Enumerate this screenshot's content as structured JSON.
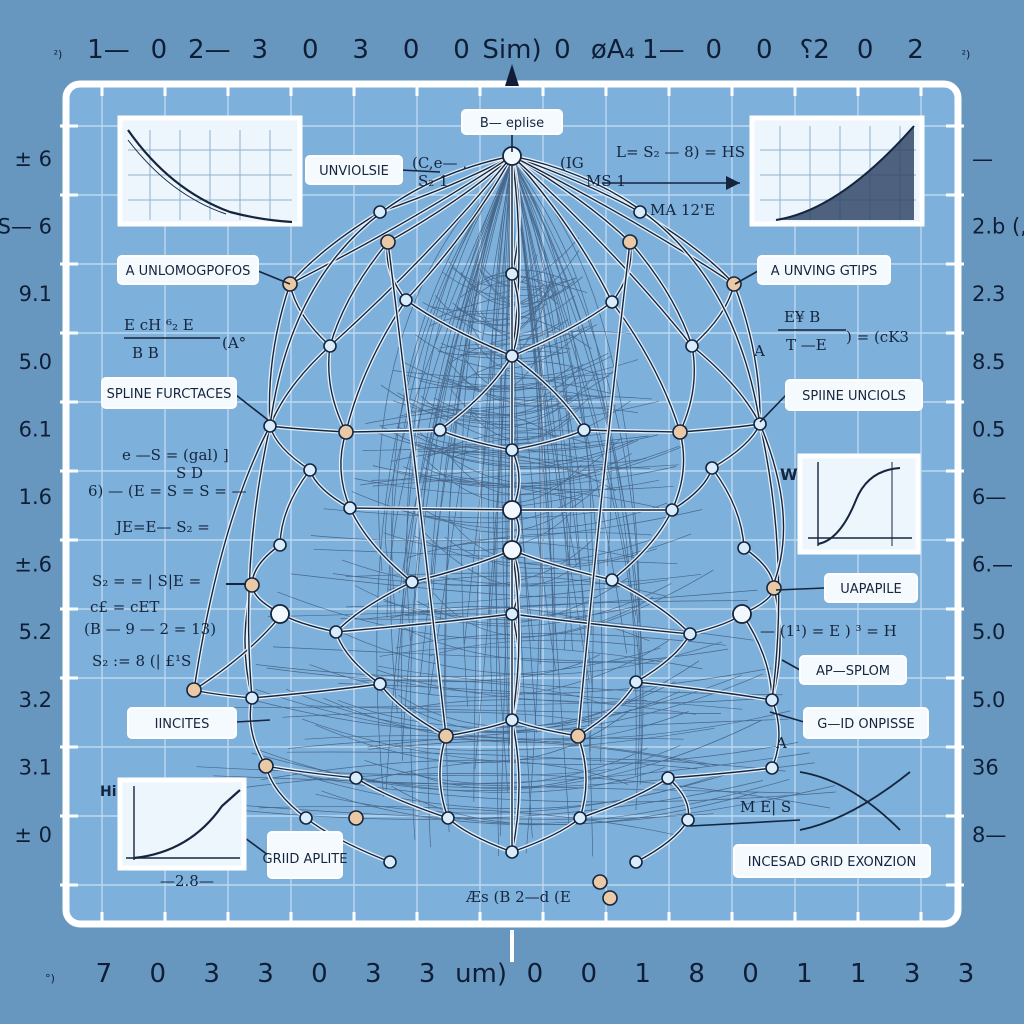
{
  "axis_top": {
    "labels": [
      "²)",
      "1—",
      "0",
      "2—",
      "3",
      "0",
      "3",
      "0",
      "0",
      "Sim)",
      "0",
      "øA₄",
      "1—",
      "0",
      "0",
      "⸮2",
      "0",
      "2",
      "²)"
    ]
  },
  "axis_bottom": {
    "labels": [
      "°)",
      "7",
      "0",
      "3",
      "3",
      "0",
      "3",
      "3",
      "um)",
      "0",
      "0",
      "1",
      "8",
      "0",
      "1",
      "1",
      "3",
      "3"
    ]
  },
  "axis_left": {
    "labels": [
      "± 6",
      "S— 6",
      "9.1",
      "5.0",
      "6.1",
      "1.6",
      "±.6",
      "5.2",
      "3.2",
      "3.1",
      "± 0"
    ]
  },
  "axis_right": {
    "labels": [
      "—",
      "2.b (,1",
      "2.3",
      "8.5",
      "0.5",
      "6—",
      "6.—",
      "5.0",
      "5.0",
      "36",
      "8—"
    ]
  },
  "callouts": {
    "top": "B— eplise",
    "unviolsie": "UNVIOLSIE",
    "unlomogpofos": "A UNLOMOGPOFOS",
    "unving_gtips": "A UNVING GTIPS",
    "spline_left": "SPLINE FURCTACES",
    "spline_right": "SPIINE UNCIOLS",
    "uapapile": "UAPAPILE",
    "apsplom": "AP—SPLOM",
    "iincites": "IINCITES",
    "grid_onpisse": "G—ID ONPISSE",
    "grid_aplite": "GRIID APLITE",
    "incesad": "INCESAD GRID EXONZION"
  },
  "equations": {
    "top_left_frag": "(C,e— ,",
    "top_left_frag2": "S₂ 1",
    "top_mid": "(IG",
    "top_mid2": "MS 1",
    "top_right": "L= S₂ — 8) = HS",
    "top_right2": "MA 12'E",
    "left_frac_num": "E  cH  ⁶₂ E",
    "left_frac_den": "B    B",
    "left_frac_tail": "(A°",
    "right_frac_num": "E¥   B",
    "right_frac_den": "T  —E",
    "right_frac_tail": ") = (cK3",
    "right_a": "A",
    "mid_left_1": "e —S = (gal) ]",
    "mid_left_2": "S   D",
    "mid_left_3": "6) — (E = S   = S = —",
    "mid_left_4": "JE=E— S₂ =",
    "low_left_1": "S₂ = = | S|E =",
    "low_left_2": "c£  = cET",
    "low_left_3": "(B — 9 — 2 =  13)",
    "low_left_4": "S₂ := 8 (| £¹S",
    "low_right_1": "— (1¹) = E ) ³ = H",
    "bottom_center": "Æs (B 2—d (E",
    "bottom_right_eq": "M E| S",
    "bottom_right_a": "A",
    "bottom_small": "—2.8—"
  },
  "insets": {
    "top_left": {
      "name": "decay curve inset"
    },
    "top_right": {
      "name": "ramp fill inset"
    },
    "mid_right": {
      "name": "sigmoid inset",
      "label": "W"
    },
    "bottom_left": {
      "name": "rising curve inset",
      "label": "Hi"
    }
  },
  "colors": {
    "background": "#6797bf",
    "panel": "#7fb0d9",
    "grid": "#c8e2f5",
    "ink": "#15253d",
    "frame": "#ffffff",
    "node_tan": "#e9c9a6",
    "node_blue": "#d9ecfb"
  }
}
